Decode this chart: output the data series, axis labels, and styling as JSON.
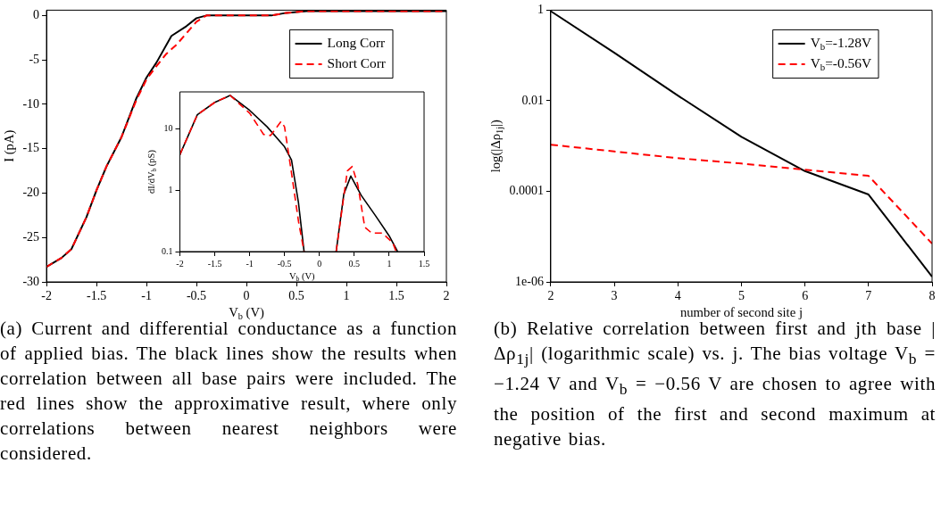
{
  "chart_data": [
    {
      "type": "line",
      "xlabel": "V$_{b}$ (V)",
      "ylabel": "I (pA)",
      "xlim": [
        -2,
        2
      ],
      "ylim": [
        -30,
        0.6
      ],
      "xticks": [
        -2,
        -1.5,
        -1,
        -0.5,
        0,
        0.5,
        1,
        1.5,
        2
      ],
      "yticks": [
        -30,
        -25,
        -20,
        -15,
        -10,
        -5,
        0
      ],
      "legend": "top right",
      "series": [
        {
          "name": "Long Corr",
          "color": "#000000",
          "line_style": "solid",
          "x": [
            -2,
            -1.85,
            -1.75,
            -1.6,
            -1.5,
            -1.4,
            -1.25,
            -1.1,
            -1,
            -0.9,
            -0.75,
            -0.6,
            -0.5,
            -0.4,
            0,
            0.25,
            0.4,
            0.6,
            1,
            2
          ],
          "values": [
            -28.3,
            -27.3,
            -26.3,
            -22.7,
            -19.7,
            -17,
            -13.7,
            -9.3,
            -7,
            -5.3,
            -2.3,
            -1.2,
            -0.3,
            0,
            0,
            0,
            0.3,
            0.5,
            0.5,
            0.5
          ]
        },
        {
          "name": "Short Corr",
          "color": "#ff0000",
          "line_style": "dashed",
          "x": [
            -2,
            -1.85,
            -1.75,
            -1.6,
            -1.5,
            -1.4,
            -1.25,
            -1.1,
            -1,
            -0.9,
            -0.8,
            -0.7,
            -0.6,
            -0.5,
            -0.4,
            0,
            0.25,
            0.4,
            0.6,
            1,
            2
          ],
          "values": [
            -28.3,
            -27.3,
            -26.3,
            -22.7,
            -19.7,
            -17,
            -13.7,
            -9.5,
            -7.2,
            -5.7,
            -4.3,
            -3.3,
            -2,
            -0.7,
            0,
            0,
            0,
            0.3,
            0.5,
            0.5,
            0.5
          ]
        }
      ],
      "annotations": [
        "(a) Current and differential conductance as a function of applied bias. The black lines show the results when correlation between all base pairs were included. The red lines show the approximative result, where only correlations between nearest neighbors were considered."
      ]
    },
    {
      "type": "line",
      "xlabel": "V$_{b}$ (V)",
      "ylabel": "dI/dV$_{b}$ (pS)",
      "log": "y",
      "xlim": [
        -2,
        1.5
      ],
      "ylim": [
        0.1,
        40
      ],
      "xticks": [
        -2,
        -1.5,
        -1,
        -0.5,
        0,
        0.5,
        1,
        1.5
      ],
      "yticks": [
        0.1,
        1,
        10
      ],
      "series": [
        {
          "color": "#000000",
          "line_style": "solid",
          "x": [
            -2,
            -1.75,
            -1.5,
            -1.28,
            -1,
            -0.75,
            -0.5,
            -0.4,
            -0.3,
            -0.22,
            0,
            0.24,
            0.35,
            0.45,
            0.6,
            0.8,
            1,
            1.12
          ],
          "values": [
            3.8,
            17,
            27,
            35,
            20,
            10.8,
            5.1,
            3.1,
            0.62,
            0.1,
            null,
            0.1,
            0.87,
            1.7,
            0.82,
            0.39,
            0.18,
            0.1
          ]
        },
        {
          "color": "#ff0000",
          "line_style": "dashed",
          "x": [
            -2,
            -1.75,
            -1.5,
            -1.28,
            -1,
            -0.8,
            -0.7,
            -0.55,
            -0.5,
            -0.4,
            -0.3,
            -0.22,
            0,
            0.24,
            0.4,
            0.47,
            0.55,
            0.65,
            0.75,
            0.9,
            1.05,
            1.1
          ],
          "values": [
            3.8,
            17,
            27,
            35,
            18,
            8.1,
            7.8,
            13.2,
            10.8,
            1.9,
            0.31,
            0.1,
            null,
            0.1,
            2.06,
            2.44,
            1.23,
            0.25,
            0.2,
            0.2,
            0.14,
            0.1
          ]
        }
      ]
    },
    {
      "type": "line",
      "xlabel": "number of second site j",
      "ylabel": "log(|Δρ$_{1j}$|)",
      "log": "y",
      "xlim": [
        2,
        8
      ],
      "ylim": [
        1e-06,
        1
      ],
      "xticks": [
        2,
        3,
        4,
        5,
        6,
        7,
        8
      ],
      "yticks": [
        {
          "value": 1e-06,
          "label": "1e-06"
        },
        0.0001,
        0.01,
        1
      ],
      "legend": "top right",
      "series": [
        {
          "name": "V$_{b}$=-1.28V",
          "color": "#000000",
          "line_style": "solid",
          "x": [
            2,
            3,
            4,
            5,
            6,
            7,
            8
          ],
          "values": [
            0.95,
            0.115,
            0.013,
            0.0016,
            0.00028,
            8.5e-05,
            1.3e-06
          ]
        },
        {
          "name": "V$_{b}$=-0.56V",
          "color": "#ff0000",
          "line_style": "dashed",
          "x": [
            2,
            3,
            4,
            5,
            6,
            7,
            8
          ],
          "values": [
            0.00107,
            0.00076,
            0.00054,
            0.00041,
            0.0003,
            0.00022,
            7e-06
          ]
        }
      ],
      "annotations": [
        "(b) Relative correlation between first and jth base |Δρ$_{1j}$| (logarithmic scale) vs. j. The bias voltage V$_{b}$ = −1.24 V and V$_{b}$ = −0.56 V are chosen to agree with the position of the first and second maximum at negative bias."
      ]
    }
  ]
}
